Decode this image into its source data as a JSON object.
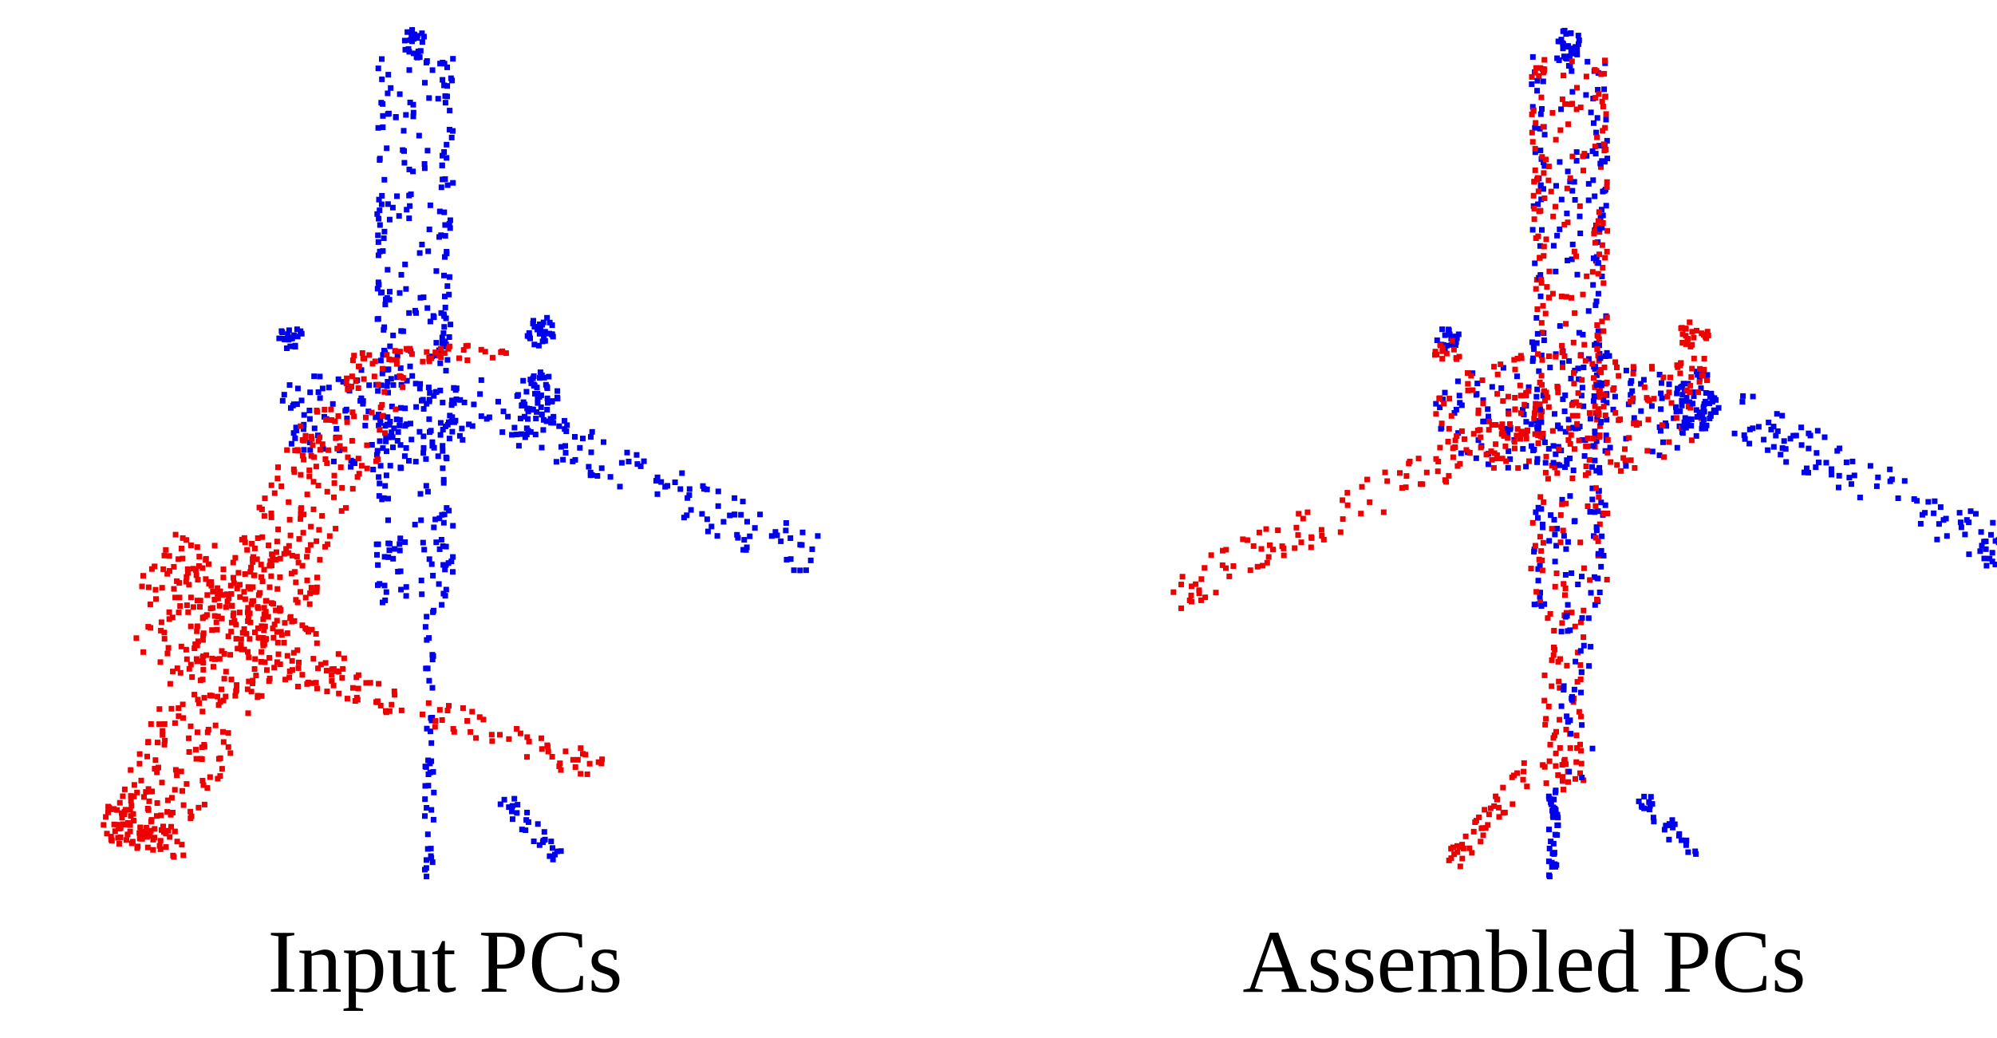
{
  "figure": {
    "panels": [
      {
        "caption": "Input PCs",
        "icon": "airplane-point-cloud-icon",
        "parts": [
          {
            "color": "#0000ee",
            "role": "fuselage and right wing"
          },
          {
            "color": "#ee0000",
            "role": "left wing, displaced"
          }
        ]
      },
      {
        "caption": "Assembled PCs",
        "icon": "airplane-point-cloud-icon",
        "parts": [
          {
            "color": "#0000ee",
            "role": "fuselage and right wing"
          },
          {
            "color": "#ee0000",
            "role": "left wing, assembled"
          }
        ]
      }
    ],
    "colors": {
      "part_a": "#0000ee",
      "part_b": "#ee0000",
      "background": "#ffffff"
    }
  }
}
